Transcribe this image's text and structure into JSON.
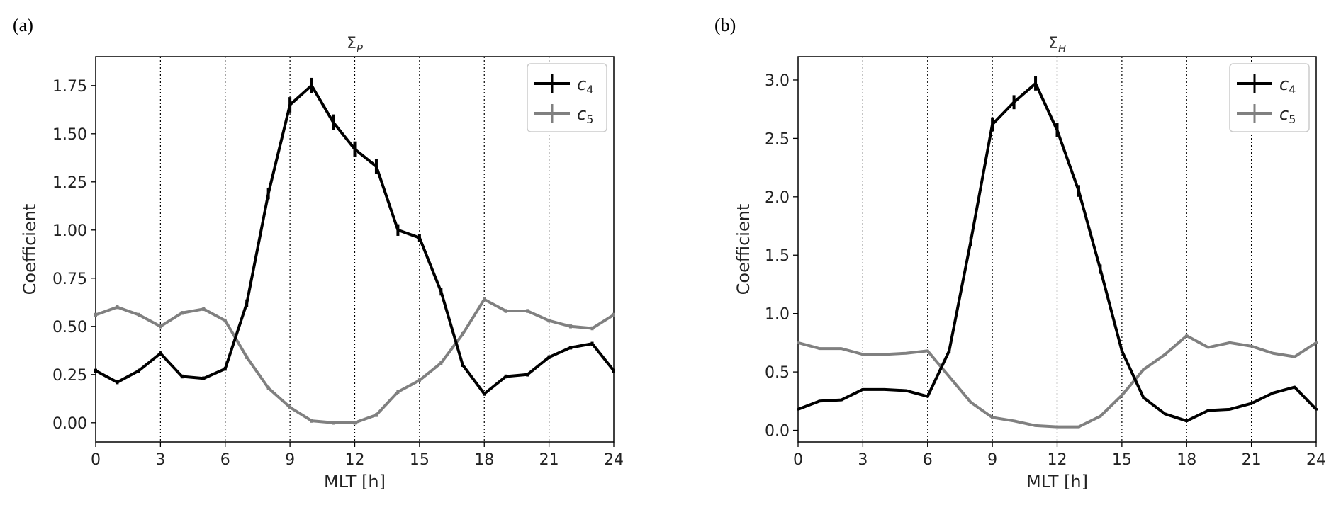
{
  "panels": [
    {
      "label": "(a)",
      "title_main": "Σ",
      "title_sub": "P"
    },
    {
      "label": "(b)",
      "title_main": "Σ",
      "title_sub": "H"
    }
  ],
  "colors": {
    "c4": "#000000",
    "c5": "#808080"
  },
  "chart_data": [
    {
      "type": "line",
      "title": "Σ_P",
      "xlabel": "MLT [h]",
      "ylabel": "Coefficient",
      "xlim": [
        0,
        24
      ],
      "ylim": [
        -0.1,
        1.9
      ],
      "xticks": [
        0,
        3,
        6,
        9,
        12,
        15,
        18,
        21,
        24
      ],
      "yticks": [
        0.0,
        0.25,
        0.5,
        0.75,
        1.0,
        1.25,
        1.5,
        1.75
      ],
      "ytick_labels": [
        "0.00",
        "0.25",
        "0.50",
        "0.75",
        "1.00",
        "1.25",
        "1.50",
        "1.75"
      ],
      "vertical_gridlines": "dotted at x ticks",
      "legend": "top-right",
      "x": [
        0,
        1,
        2,
        3,
        4,
        5,
        6,
        7,
        8,
        9,
        10,
        11,
        12,
        13,
        14,
        15,
        16,
        17,
        18,
        19,
        20,
        21,
        22,
        23,
        24
      ],
      "series": [
        {
          "name_main": "c",
          "name_sub": "4",
          "color": "#000000",
          "values": [
            0.27,
            0.21,
            0.27,
            0.36,
            0.24,
            0.23,
            0.28,
            0.62,
            1.19,
            1.65,
            1.75,
            1.56,
            1.42,
            1.33,
            1.0,
            0.96,
            0.68,
            0.3,
            0.15,
            0.24,
            0.25,
            0.34,
            0.39,
            0.41,
            0.27
          ],
          "errors": [
            0.01,
            0.01,
            0.01,
            0.01,
            0.01,
            0.01,
            0.01,
            0.02,
            0.03,
            0.04,
            0.04,
            0.04,
            0.04,
            0.04,
            0.03,
            0.02,
            0.02,
            0.01,
            0.01,
            0.01,
            0.01,
            0.01,
            0.01,
            0.01,
            0.01
          ]
        },
        {
          "name_main": "c",
          "name_sub": "5",
          "color": "#808080",
          "values": [
            0.56,
            0.6,
            0.56,
            0.5,
            0.57,
            0.59,
            0.53,
            0.34,
            0.18,
            0.08,
            0.01,
            0.0,
            0.0,
            0.04,
            0.16,
            0.22,
            0.31,
            0.46,
            0.64,
            0.58,
            0.58,
            0.53,
            0.5,
            0.49,
            0.56
          ],
          "errors": [
            0.01,
            0.01,
            0.01,
            0.01,
            0.01,
            0.01,
            0.01,
            0.01,
            0.01,
            0.01,
            0.01,
            0.01,
            0.01,
            0.01,
            0.01,
            0.01,
            0.01,
            0.01,
            0.01,
            0.01,
            0.01,
            0.01,
            0.01,
            0.01,
            0.01
          ]
        }
      ]
    },
    {
      "type": "line",
      "title": "Σ_H",
      "xlabel": "MLT [h]",
      "ylabel": "Coefficient",
      "xlim": [
        0,
        24
      ],
      "ylim": [
        -0.1,
        3.2
      ],
      "xticks": [
        0,
        3,
        6,
        9,
        12,
        15,
        18,
        21,
        24
      ],
      "yticks": [
        0.0,
        0.5,
        1.0,
        1.5,
        2.0,
        2.5,
        3.0
      ],
      "ytick_labels": [
        "0.0",
        "0.5",
        "1.0",
        "1.5",
        "2.0",
        "2.5",
        "3.0"
      ],
      "vertical_gridlines": "dotted at x ticks",
      "legend": "top-right",
      "x": [
        0,
        1,
        2,
        3,
        4,
        5,
        6,
        7,
        8,
        9,
        10,
        11,
        12,
        13,
        14,
        15,
        16,
        17,
        18,
        19,
        20,
        21,
        22,
        23,
        24
      ],
      "series": [
        {
          "name_main": "c",
          "name_sub": "4",
          "color": "#000000",
          "values": [
            0.18,
            0.25,
            0.26,
            0.35,
            0.35,
            0.34,
            0.29,
            0.68,
            1.62,
            2.62,
            2.81,
            2.97,
            2.57,
            2.05,
            1.38,
            0.68,
            0.28,
            0.14,
            0.08,
            0.17,
            0.18,
            0.23,
            0.32,
            0.37,
            0.18
          ],
          "errors": [
            0.01,
            0.01,
            0.01,
            0.01,
            0.01,
            0.01,
            0.01,
            0.02,
            0.04,
            0.06,
            0.06,
            0.06,
            0.06,
            0.05,
            0.04,
            0.02,
            0.01,
            0.01,
            0.01,
            0.01,
            0.01,
            0.01,
            0.01,
            0.01,
            0.01
          ]
        },
        {
          "name_main": "c",
          "name_sub": "5",
          "color": "#808080",
          "values": [
            0.75,
            0.7,
            0.7,
            0.65,
            0.65,
            0.66,
            0.68,
            0.46,
            0.24,
            0.11,
            0.08,
            0.04,
            0.03,
            0.03,
            0.12,
            0.3,
            0.52,
            0.65,
            0.81,
            0.71,
            0.75,
            0.72,
            0.66,
            0.63,
            0.75
          ],
          "errors": [
            0.01,
            0.01,
            0.01,
            0.01,
            0.01,
            0.01,
            0.01,
            0.01,
            0.01,
            0.01,
            0.01,
            0.01,
            0.01,
            0.01,
            0.01,
            0.01,
            0.01,
            0.01,
            0.01,
            0.01,
            0.01,
            0.01,
            0.01,
            0.01,
            0.01
          ]
        }
      ]
    }
  ]
}
